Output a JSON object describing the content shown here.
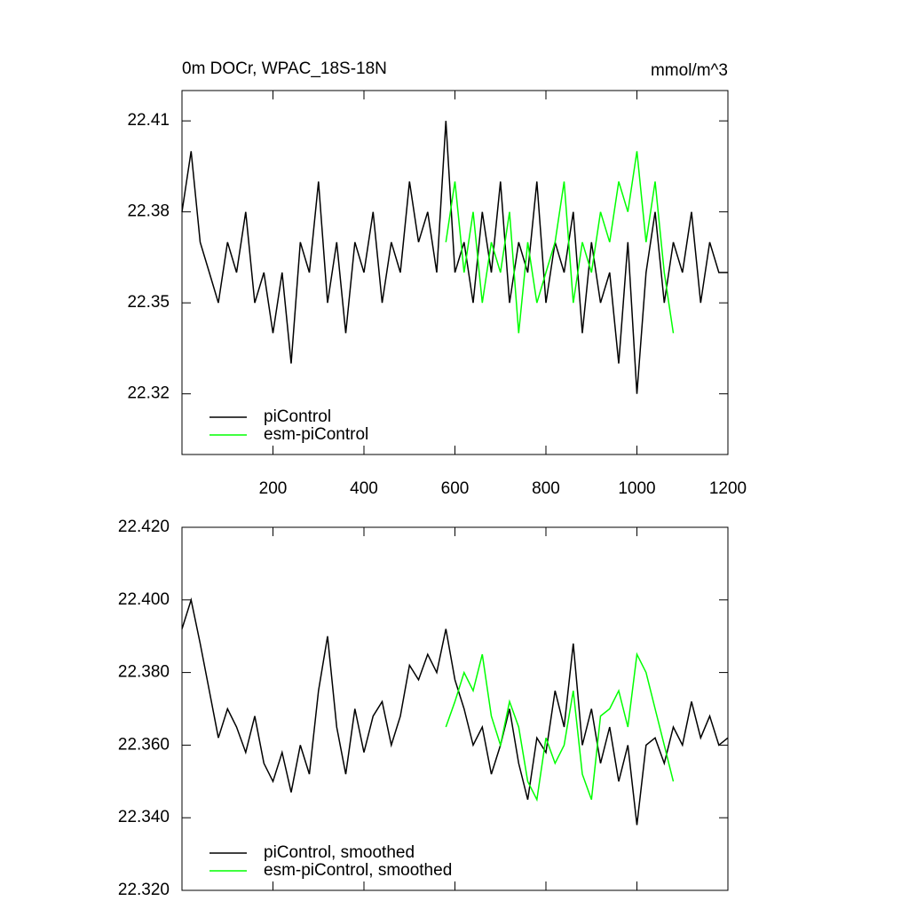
{
  "chart_data": [
    {
      "type": "line",
      "title": "0m DOCr, WPAC_18S-18N",
      "units": "mmol/m^3",
      "x": [
        0,
        20,
        40,
        60,
        80,
        100,
        120,
        140,
        160,
        180,
        200,
        220,
        240,
        260,
        280,
        300,
        320,
        340,
        360,
        380,
        400,
        420,
        440,
        460,
        480,
        500,
        520,
        540,
        560,
        580,
        600,
        620,
        640,
        660,
        680,
        700,
        720,
        740,
        760,
        780,
        800,
        820,
        840,
        860,
        880,
        900,
        920,
        940,
        960,
        980,
        1000,
        1020,
        1040,
        1060,
        1080,
        1100,
        1120,
        1140,
        1160,
        1180,
        1200
      ],
      "series": [
        {
          "name": "piControl",
          "color": "#000000",
          "values": [
            22.38,
            22.4,
            22.37,
            22.36,
            22.35,
            22.37,
            22.36,
            22.38,
            22.35,
            22.36,
            22.34,
            22.36,
            22.33,
            22.37,
            22.36,
            22.39,
            22.35,
            22.37,
            22.34,
            22.37,
            22.36,
            22.38,
            22.35,
            22.37,
            22.36,
            22.39,
            22.37,
            22.38,
            22.36,
            22.41,
            22.36,
            22.37,
            22.35,
            22.38,
            22.36,
            22.39,
            22.35,
            22.37,
            22.36,
            22.39,
            22.35,
            22.37,
            22.36,
            22.38,
            22.34,
            22.37,
            22.35,
            22.36,
            22.33,
            22.37,
            22.32,
            22.36,
            22.38,
            22.35,
            22.37,
            22.36,
            22.38,
            22.35,
            22.37,
            22.36,
            22.36
          ]
        },
        {
          "name": "esm-piControl",
          "color": "#00ff00",
          "values": [
            null,
            null,
            null,
            null,
            null,
            null,
            null,
            null,
            null,
            null,
            null,
            null,
            null,
            null,
            null,
            null,
            null,
            null,
            null,
            null,
            null,
            null,
            null,
            null,
            null,
            null,
            null,
            null,
            null,
            22.37,
            22.39,
            22.36,
            22.38,
            22.35,
            22.37,
            22.36,
            22.38,
            22.34,
            22.37,
            22.35,
            22.36,
            22.37,
            22.39,
            22.35,
            22.37,
            22.36,
            22.38,
            22.37,
            22.39,
            22.38,
            22.4,
            22.37,
            22.39,
            22.36,
            22.34,
            null,
            null,
            null,
            null,
            null,
            null
          ]
        }
      ],
      "xlim": [
        0,
        1200
      ],
      "xticks": [
        200,
        400,
        600,
        800,
        1000,
        1200
      ],
      "ylim": [
        22.3,
        22.42
      ],
      "yticks": [
        22.32,
        22.35,
        22.38,
        22.41
      ],
      "legend": "lower left"
    },
    {
      "type": "line",
      "x": [
        0,
        20,
        40,
        60,
        80,
        100,
        120,
        140,
        160,
        180,
        200,
        220,
        240,
        260,
        280,
        300,
        320,
        340,
        360,
        380,
        400,
        420,
        440,
        460,
        480,
        500,
        520,
        540,
        560,
        580,
        600,
        620,
        640,
        660,
        680,
        700,
        720,
        740,
        760,
        780,
        800,
        820,
        840,
        860,
        880,
        900,
        920,
        940,
        960,
        980,
        1000,
        1020,
        1040,
        1060,
        1080,
        1100,
        1120,
        1140,
        1160,
        1180,
        1200
      ],
      "series": [
        {
          "name": "piControl, smoothed",
          "color": "#000000",
          "values": [
            22.392,
            22.4,
            22.388,
            22.375,
            22.362,
            22.37,
            22.365,
            22.358,
            22.368,
            22.355,
            22.35,
            22.358,
            22.347,
            22.36,
            22.352,
            22.375,
            22.39,
            22.365,
            22.352,
            22.37,
            22.358,
            22.368,
            22.372,
            22.36,
            22.368,
            22.382,
            22.378,
            22.385,
            22.38,
            22.392,
            22.378,
            22.37,
            22.36,
            22.365,
            22.352,
            22.36,
            22.37,
            22.355,
            22.345,
            22.362,
            22.358,
            22.375,
            22.365,
            22.388,
            22.36,
            22.37,
            22.355,
            22.365,
            22.35,
            22.36,
            22.338,
            22.36,
            22.362,
            22.355,
            22.365,
            22.36,
            22.372,
            22.362,
            22.368,
            22.36,
            22.362
          ]
        },
        {
          "name": "esm-piControl, smoothed",
          "color": "#00ff00",
          "values": [
            null,
            null,
            null,
            null,
            null,
            null,
            null,
            null,
            null,
            null,
            null,
            null,
            null,
            null,
            null,
            null,
            null,
            null,
            null,
            null,
            null,
            null,
            null,
            null,
            null,
            null,
            null,
            null,
            null,
            22.365,
            22.372,
            22.38,
            22.375,
            22.385,
            22.368,
            22.36,
            22.372,
            22.365,
            22.35,
            22.345,
            22.362,
            22.355,
            22.36,
            22.375,
            22.352,
            22.345,
            22.368,
            22.37,
            22.375,
            22.365,
            22.385,
            22.38,
            22.37,
            22.36,
            22.35,
            null,
            null,
            null,
            null,
            null,
            null
          ]
        }
      ],
      "xlim": [
        0,
        1200
      ],
      "xticks": [
        200,
        400,
        600,
        800,
        1000,
        1200
      ],
      "ylim": [
        22.32,
        22.42
      ],
      "yticks": [
        {
          "value": 22.32,
          "label": "22.320"
        },
        {
          "value": 22.34,
          "label": "22.340"
        },
        {
          "value": 22.36,
          "label": "22.360"
        },
        {
          "value": 22.38,
          "label": "22.380"
        },
        {
          "value": 22.4,
          "label": "22.400"
        },
        {
          "value": 22.42,
          "label": "22.420"
        }
      ],
      "legend": "lower left"
    }
  ]
}
